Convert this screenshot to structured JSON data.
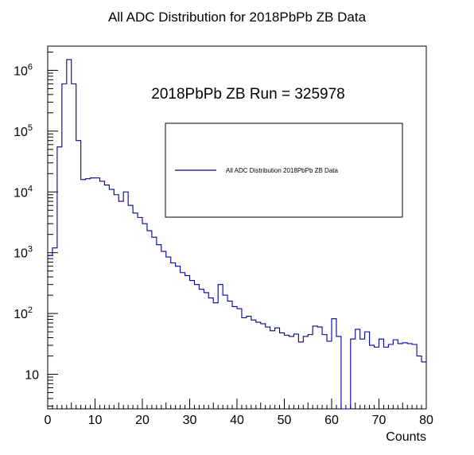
{
  "chart_data": {
    "type": "histogram",
    "title": "All ADC Distribution for 2018PbPb ZB Data",
    "xlabel": "Counts",
    "ylabel": "",
    "annotation": "2018PbPb ZB Run = 325978",
    "legend": {
      "placement": "top-right",
      "entries": [
        "All ADC Distribution 2018PbPb ZB Data"
      ]
    },
    "xlim": [
      0,
      80
    ],
    "ylim": [
      2.7,
      2500000
    ],
    "ylog": true,
    "grid": false,
    "series_color": "#000099",
    "x_ticks": [
      0,
      10,
      20,
      30,
      40,
      50,
      60,
      70,
      80
    ],
    "x_tick_labels": [
      "0",
      "10",
      "20",
      "30",
      "40",
      "50",
      "60",
      "70",
      "80"
    ],
    "y_ticks": [
      10,
      100,
      1000,
      10000,
      100000,
      1000000
    ],
    "y_tick_labels": [
      {
        "base": "10",
        "exp": ""
      },
      {
        "base": "10",
        "exp": "2"
      },
      {
        "base": "10",
        "exp": "3"
      },
      {
        "base": "10",
        "exp": "4"
      },
      {
        "base": "10",
        "exp": "5"
      },
      {
        "base": "10",
        "exp": "6"
      }
    ],
    "bin_width": 1,
    "x_bin_low_edges": [
      0,
      1,
      2,
      3,
      4,
      5,
      6,
      7,
      8,
      9,
      10,
      11,
      12,
      13,
      14,
      15,
      16,
      17,
      18,
      19,
      20,
      21,
      22,
      23,
      24,
      25,
      26,
      27,
      28,
      29,
      30,
      31,
      32,
      33,
      34,
      35,
      36,
      37,
      38,
      39,
      40,
      41,
      42,
      43,
      44,
      45,
      46,
      47,
      48,
      49,
      50,
      51,
      52,
      53,
      54,
      55,
      56,
      57,
      58,
      59,
      60,
      61,
      62,
      63,
      64,
      65,
      66,
      67,
      68,
      69,
      70,
      71,
      72,
      73,
      74,
      75,
      76,
      77,
      78,
      79
    ],
    "values": [
      900,
      1200,
      55000,
      600000,
      1500000,
      600000,
      70000,
      16000,
      16500,
      17000,
      17000,
      15000,
      13000,
      11000,
      9000,
      7000,
      10000,
      6000,
      4500,
      3800,
      3000,
      2300,
      1800,
      1350,
      1050,
      850,
      680,
      600,
      470,
      420,
      350,
      300,
      250,
      220,
      180,
      150,
      300,
      200,
      160,
      130,
      120,
      85,
      90,
      78,
      72,
      68,
      60,
      52,
      58,
      48,
      44,
      42,
      46,
      34,
      42,
      45,
      62,
      60,
      45,
      35,
      82,
      42,
      2.7,
      2.7,
      38,
      55,
      38,
      50,
      30,
      28,
      38,
      28,
      31,
      37,
      32,
      33,
      32,
      31,
      20,
      16
    ]
  }
}
